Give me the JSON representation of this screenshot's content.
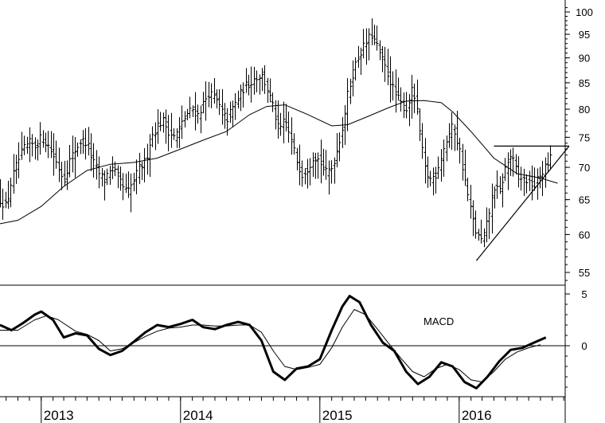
{
  "chart_data": [
    {
      "type": "ohlc",
      "y_scale": "log",
      "ylim": [
        53,
        102
      ],
      "y_ticks": [
        55,
        60,
        65,
        70,
        75,
        80,
        85,
        90,
        95,
        100
      ],
      "x_range": [
        "2012-09-15",
        "2016-07-05"
      ],
      "x_tick_labels": [
        "2013",
        "2014",
        "2015",
        "2016"
      ],
      "x_tick_dates": [
        "2013-01-01",
        "2014-01-01",
        "2015-01-01",
        "2016-01-01"
      ],
      "close_path": [
        [
          "2012-09-15",
          65
        ],
        [
          "2012-10-01",
          64
        ],
        [
          "2012-10-15",
          68
        ],
        [
          "2012-11-01",
          71
        ],
        [
          "2012-11-15",
          73
        ],
        [
          "2012-12-01",
          74
        ],
        [
          "2012-12-15",
          73.5
        ],
        [
          "2013-01-01",
          75
        ],
        [
          "2013-01-15",
          74
        ],
        [
          "2013-02-01",
          72
        ],
        [
          "2013-02-15",
          70
        ],
        [
          "2013-03-01",
          68
        ],
        [
          "2013-03-15",
          71
        ],
        [
          "2013-04-01",
          73
        ],
        [
          "2013-04-15",
          74.5
        ],
        [
          "2013-05-01",
          74
        ],
        [
          "2013-05-15",
          71
        ],
        [
          "2013-06-01",
          69
        ],
        [
          "2013-06-15",
          68
        ],
        [
          "2013-07-01",
          70
        ],
        [
          "2013-07-15",
          69
        ],
        [
          "2013-08-01",
          67
        ],
        [
          "2013-08-15",
          66
        ],
        [
          "2013-09-01",
          68
        ],
        [
          "2013-09-15",
          70
        ],
        [
          "2013-10-01",
          71
        ],
        [
          "2013-10-15",
          75
        ],
        [
          "2013-11-01",
          77
        ],
        [
          "2013-11-15",
          78
        ],
        [
          "2013-12-01",
          76
        ],
        [
          "2013-12-15",
          75
        ],
        [
          "2014-01-01",
          77
        ],
        [
          "2014-01-15",
          79
        ],
        [
          "2014-02-01",
          80
        ],
        [
          "2014-02-15",
          79
        ],
        [
          "2014-03-01",
          81
        ],
        [
          "2014-03-15",
          83
        ],
        [
          "2014-04-01",
          82
        ],
        [
          "2014-04-15",
          80
        ],
        [
          "2014-05-01",
          78
        ],
        [
          "2014-05-15",
          80
        ],
        [
          "2014-06-01",
          82
        ],
        [
          "2014-06-15",
          84
        ],
        [
          "2014-07-01",
          85
        ],
        [
          "2014-07-15",
          86
        ],
        [
          "2014-08-01",
          86.5
        ],
        [
          "2014-08-15",
          84
        ],
        [
          "2014-09-01",
          80
        ],
        [
          "2014-09-15",
          76
        ],
        [
          "2014-10-01",
          78
        ],
        [
          "2014-10-15",
          75
        ],
        [
          "2014-11-01",
          71
        ],
        [
          "2014-11-15",
          69
        ],
        [
          "2014-12-01",
          70
        ],
        [
          "2014-12-15",
          72
        ],
        [
          "2015-01-01",
          71
        ],
        [
          "2015-01-15",
          69
        ],
        [
          "2015-02-01",
          70
        ],
        [
          "2015-02-15",
          73
        ],
        [
          "2015-03-01",
          77
        ],
        [
          "2015-03-15",
          83
        ],
        [
          "2015-04-01",
          88
        ],
        [
          "2015-04-15",
          91
        ],
        [
          "2015-05-01",
          93
        ],
        [
          "2015-05-15",
          95
        ],
        [
          "2015-06-01",
          92
        ],
        [
          "2015-06-15",
          89
        ],
        [
          "2015-07-01",
          86
        ],
        [
          "2015-07-15",
          83
        ],
        [
          "2015-08-01",
          81
        ],
        [
          "2015-08-15",
          80
        ],
        [
          "2015-09-01",
          84
        ],
        [
          "2015-09-15",
          78
        ],
        [
          "2015-10-01",
          70
        ],
        [
          "2015-10-15",
          68
        ],
        [
          "2015-11-01",
          69
        ],
        [
          "2015-11-15",
          72
        ],
        [
          "2015-12-01",
          75
        ],
        [
          "2015-12-15",
          77
        ],
        [
          "2016-01-01",
          73
        ],
        [
          "2016-01-15",
          68
        ],
        [
          "2016-02-01",
          63
        ],
        [
          "2016-02-15",
          60
        ],
        [
          "2016-03-01",
          59
        ],
        [
          "2016-03-15",
          62
        ],
        [
          "2016-04-01",
          67
        ],
        [
          "2016-04-15",
          66
        ],
        [
          "2016-05-01",
          70
        ],
        [
          "2016-05-15",
          72
        ],
        [
          "2016-06-01",
          69
        ],
        [
          "2016-06-15",
          68
        ],
        [
          "2016-07-01",
          68
        ],
        [
          "2016-07-15",
          67
        ],
        [
          "2016-08-01",
          69
        ],
        [
          "2016-08-15",
          70
        ],
        [
          "2016-09-01",
          72
        ]
      ],
      "moving_average": [
        [
          "2012-09-15",
          61.5
        ],
        [
          "2012-11-01",
          62
        ],
        [
          "2013-01-01",
          64
        ],
        [
          "2013-03-01",
          67
        ],
        [
          "2013-05-01",
          69.5
        ],
        [
          "2013-07-01",
          70.5
        ],
        [
          "2013-09-01",
          70.8
        ],
        [
          "2013-11-01",
          71.5
        ],
        [
          "2014-01-01",
          73
        ],
        [
          "2014-03-01",
          74.5
        ],
        [
          "2014-05-01",
          76
        ],
        [
          "2014-07-01",
          79
        ],
        [
          "2014-08-15",
          80.5
        ],
        [
          "2014-10-01",
          80.8
        ],
        [
          "2014-12-01",
          79
        ],
        [
          "2015-02-01",
          77
        ],
        [
          "2015-03-15",
          77.2
        ],
        [
          "2015-05-01",
          78.5
        ],
        [
          "2015-07-01",
          80.3
        ],
        [
          "2015-08-15",
          81.5
        ],
        [
          "2015-10-01",
          81.6
        ],
        [
          "2015-11-15",
          81.2
        ],
        [
          "2015-12-15",
          79.5
        ],
        [
          "2016-02-01",
          76
        ],
        [
          "2016-04-01",
          71.5
        ],
        [
          "2016-06-01",
          69
        ],
        [
          "2016-08-01",
          68.3
        ],
        [
          "2016-09-15",
          67.5
        ]
      ],
      "horizontal_line": {
        "from": "2016-04-01",
        "to": "2016-10-15",
        "value": 73.5
      },
      "trend_line": [
        [
          "2016-02-15",
          56.5
        ],
        [
          "2016-10-15",
          73.5
        ]
      ]
    },
    {
      "type": "line",
      "title": "MACD",
      "y_ticks": [
        0,
        5
      ],
      "ylim": [
        -5,
        5.3
      ],
      "zero_line": 0,
      "series": [
        {
          "values": [
            [
              "2012-09-15",
              2
            ],
            [
              "2012-10-15",
              1.5
            ],
            [
              "2012-11-15",
              2.2
            ],
            [
              "2012-12-15",
              3
            ],
            [
              "2013-01-01",
              3.3
            ],
            [
              "2013-02-01",
              2.5
            ],
            [
              "2013-03-01",
              0.8
            ],
            [
              "2013-04-01",
              1.2
            ],
            [
              "2013-05-01",
              1
            ],
            [
              "2013-06-01",
              -0.3
            ],
            [
              "2013-07-01",
              -0.9
            ],
            [
              "2013-08-01",
              -0.5
            ],
            [
              "2013-09-01",
              0.4
            ],
            [
              "2013-10-01",
              1.3
            ],
            [
              "2013-11-01",
              2
            ],
            [
              "2013-12-01",
              1.8
            ],
            [
              "2014-01-01",
              2.1
            ],
            [
              "2014-02-01",
              2.5
            ],
            [
              "2014-03-01",
              1.8
            ],
            [
              "2014-04-01",
              1.6
            ],
            [
              "2014-05-01",
              2
            ],
            [
              "2014-06-01",
              2.3
            ],
            [
              "2014-07-01",
              2
            ],
            [
              "2014-08-01",
              0.5
            ],
            [
              "2014-09-01",
              -2.5
            ],
            [
              "2014-10-01",
              -3.3
            ],
            [
              "2014-11-01",
              -2.2
            ],
            [
              "2014-12-01",
              -2
            ],
            [
              "2015-01-01",
              -1.3
            ],
            [
              "2015-02-01",
              1.5
            ],
            [
              "2015-03-01",
              3.8
            ],
            [
              "2015-03-20",
              4.8
            ],
            [
              "2015-04-15",
              4.2
            ],
            [
              "2015-05-15",
              2
            ],
            [
              "2015-06-15",
              0.3
            ],
            [
              "2015-07-15",
              -0.5
            ],
            [
              "2015-08-15",
              -2.5
            ],
            [
              "2015-09-15",
              -3.7
            ],
            [
              "2015-10-15",
              -3
            ],
            [
              "2015-11-15",
              -1.6
            ],
            [
              "2015-12-15",
              -2
            ],
            [
              "2016-01-15",
              -3.5
            ],
            [
              "2016-02-15",
              -4.1
            ],
            [
              "2016-03-15",
              -3
            ],
            [
              "2016-04-15",
              -1.5
            ],
            [
              "2016-05-15",
              -0.4
            ],
            [
              "2016-06-15",
              -0.2
            ],
            [
              "2016-07-15",
              0.3
            ],
            [
              "2016-08-15",
              0.8
            ]
          ]
        },
        {
          "values": [
            [
              "2012-09-15",
              1.5
            ],
            [
              "2012-11-01",
              1.5
            ],
            [
              "2012-12-15",
              2.5
            ],
            [
              "2013-01-15",
              2.9
            ],
            [
              "2013-02-15",
              2.5
            ],
            [
              "2013-04-01",
              1.4
            ],
            [
              "2013-05-01",
              1.1
            ],
            [
              "2013-06-01",
              0.5
            ],
            [
              "2013-07-01",
              -0.5
            ],
            [
              "2013-08-01",
              -0.3
            ],
            [
              "2013-09-01",
              0.3
            ],
            [
              "2013-10-01",
              0.9
            ],
            [
              "2013-11-01",
              1.4
            ],
            [
              "2013-12-01",
              1.7
            ],
            [
              "2014-01-01",
              1.8
            ],
            [
              "2014-02-01",
              2
            ],
            [
              "2014-03-01",
              2
            ],
            [
              "2014-04-01",
              1.9
            ],
            [
              "2014-05-01",
              1.9
            ],
            [
              "2014-06-01",
              2
            ],
            [
              "2014-07-01",
              2
            ],
            [
              "2014-08-01",
              1.3
            ],
            [
              "2014-09-01",
              -0.5
            ],
            [
              "2014-10-01",
              -2
            ],
            [
              "2014-11-01",
              -2.3
            ],
            [
              "2014-12-01",
              -2.1
            ],
            [
              "2015-01-01",
              -1.8
            ],
            [
              "2015-02-01",
              -0.2
            ],
            [
              "2015-03-01",
              1.8
            ],
            [
              "2015-04-01",
              3.5
            ],
            [
              "2015-05-01",
              3
            ],
            [
              "2015-06-01",
              1.6
            ],
            [
              "2015-07-01",
              0.2
            ],
            [
              "2015-08-01",
              -1.2
            ],
            [
              "2015-09-01",
              -2.5
            ],
            [
              "2015-10-01",
              -3
            ],
            [
              "2015-11-01",
              -2.2
            ],
            [
              "2015-12-01",
              -1.8
            ],
            [
              "2016-01-01",
              -2.3
            ],
            [
              "2016-02-01",
              -3.3
            ],
            [
              "2016-03-01",
              -3.5
            ],
            [
              "2016-04-01",
              -2.5
            ],
            [
              "2016-05-01",
              -1.3
            ],
            [
              "2016-06-01",
              -0.6
            ],
            [
              "2016-07-01",
              -0.2
            ],
            [
              "2016-08-01",
              0.1
            ]
          ]
        }
      ]
    }
  ]
}
